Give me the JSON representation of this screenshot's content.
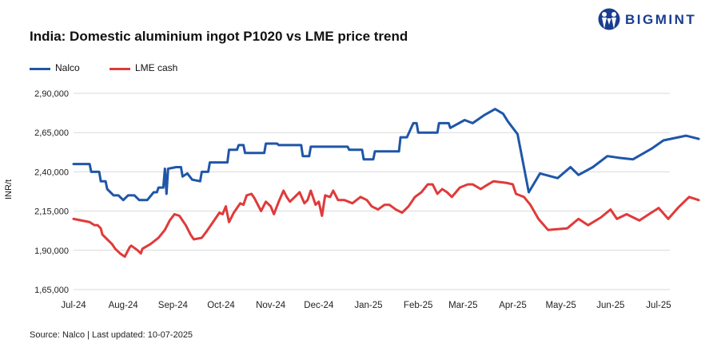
{
  "title": "India: Domestic aluminium ingot P1020 vs LME price trend",
  "logo": {
    "text": "BIGMINT",
    "icon": "bigmint-logo-icon",
    "color": "#1a3d8f"
  },
  "source": "Source: Nalco | Last updated: 10-07-2025",
  "legend": [
    {
      "name": "Nalco",
      "color": "#1f56a8"
    },
    {
      "name": "LME cash",
      "color": "#e03a3a"
    }
  ],
  "chart_data": {
    "type": "line",
    "title": "India: Domestic aluminium ingot P1020 vs LME price trend",
    "xlabel": "",
    "ylabel": "INR/t",
    "ylim": [
      165000,
      290000
    ],
    "y_ticks": [
      165000,
      190000,
      215000,
      240000,
      265000,
      290000
    ],
    "y_tick_labels": [
      "1,65,000",
      "1,90,000",
      "2,15,000",
      "2,40,000",
      "2,65,000",
      "2,90,000"
    ],
    "x_range": [
      "2024-07-01",
      "2025-07-08"
    ],
    "x_ticks": [
      "2024-07-01",
      "2024-08-01",
      "2024-09-01",
      "2024-10-01",
      "2024-11-01",
      "2024-12-01",
      "2025-01-01",
      "2025-02-01",
      "2025-03-01",
      "2025-04-01",
      "2025-05-01",
      "2025-06-01",
      "2025-07-01"
    ],
    "x_tick_labels": [
      "Jul-24",
      "Aug-24",
      "Sep-24",
      "Oct-24",
      "Nov-24",
      "Dec-24",
      "Jan-25",
      "Feb-25",
      "Mar-25",
      "Apr-25",
      "May-25",
      "Jun-25",
      "Jul-25"
    ],
    "grid": "horizontal",
    "legend_position": "top-left",
    "series": [
      {
        "name": "Nalco",
        "color": "#1f56a8",
        "points": [
          [
            "2024-07-01",
            245000
          ],
          [
            "2024-07-11",
            245000
          ],
          [
            "2024-07-12",
            240000
          ],
          [
            "2024-07-17",
            240000
          ],
          [
            "2024-07-18",
            234000
          ],
          [
            "2024-07-21",
            234000
          ],
          [
            "2024-07-22",
            229000
          ],
          [
            "2024-07-26",
            225000
          ],
          [
            "2024-07-29",
            225000
          ],
          [
            "2024-08-01",
            222000
          ],
          [
            "2024-08-04",
            225000
          ],
          [
            "2024-08-08",
            225000
          ],
          [
            "2024-08-11",
            222000
          ],
          [
            "2024-08-16",
            222000
          ],
          [
            "2024-08-20",
            227000
          ],
          [
            "2024-08-22",
            227000
          ],
          [
            "2024-08-23",
            230000
          ],
          [
            "2024-08-26",
            230000
          ],
          [
            "2024-08-27",
            242000
          ],
          [
            "2024-08-28",
            226000
          ],
          [
            "2024-08-29",
            242000
          ],
          [
            "2024-09-03",
            243000
          ],
          [
            "2024-09-06",
            243000
          ],
          [
            "2024-09-07",
            237000
          ],
          [
            "2024-09-10",
            239000
          ],
          [
            "2024-09-13",
            235000
          ],
          [
            "2024-09-18",
            234000
          ],
          [
            "2024-09-19",
            240000
          ],
          [
            "2024-09-23",
            240000
          ],
          [
            "2024-09-24",
            246000
          ],
          [
            "2024-10-05",
            246000
          ],
          [
            "2024-10-06",
            254000
          ],
          [
            "2024-10-11",
            254000
          ],
          [
            "2024-10-12",
            257000
          ],
          [
            "2024-10-15",
            257000
          ],
          [
            "2024-10-16",
            252000
          ],
          [
            "2024-10-28",
            252000
          ],
          [
            "2024-10-29",
            258000
          ],
          [
            "2024-11-05",
            258000
          ],
          [
            "2024-11-06",
            257000
          ],
          [
            "2024-11-20",
            257000
          ],
          [
            "2024-11-21",
            250000
          ],
          [
            "2024-11-25",
            250000
          ],
          [
            "2024-11-26",
            256000
          ],
          [
            "2024-12-19",
            256000
          ],
          [
            "2024-12-20",
            254000
          ],
          [
            "2024-12-28",
            254000
          ],
          [
            "2024-12-29",
            248000
          ],
          [
            "2025-01-04",
            248000
          ],
          [
            "2025-01-05",
            253000
          ],
          [
            "2025-01-20",
            253000
          ],
          [
            "2025-01-21",
            262000
          ],
          [
            "2025-01-25",
            262000
          ],
          [
            "2025-01-29",
            271000
          ],
          [
            "2025-01-31",
            271000
          ],
          [
            "2025-02-01",
            265000
          ],
          [
            "2025-02-13",
            265000
          ],
          [
            "2025-02-14",
            271000
          ],
          [
            "2025-02-20",
            271000
          ],
          [
            "2025-02-21",
            268000
          ],
          [
            "2025-03-02",
            273000
          ],
          [
            "2025-03-07",
            271000
          ],
          [
            "2025-03-14",
            276000
          ],
          [
            "2025-03-21",
            280000
          ],
          [
            "2025-03-26",
            277000
          ],
          [
            "2025-03-29",
            272000
          ],
          [
            "2025-04-04",
            264000
          ],
          [
            "2025-04-11",
            227000
          ],
          [
            "2025-04-18",
            239000
          ],
          [
            "2025-04-29",
            236000
          ],
          [
            "2025-05-07",
            243000
          ],
          [
            "2025-05-12",
            238000
          ],
          [
            "2025-05-21",
            243000
          ],
          [
            "2025-05-30",
            250000
          ],
          [
            "2025-06-06",
            249000
          ],
          [
            "2025-06-15",
            248000
          ],
          [
            "2025-06-27",
            255000
          ],
          [
            "2025-07-04",
            260000
          ],
          [
            "2025-07-18",
            263000
          ],
          [
            "2025-07-26",
            261000
          ]
        ]
      },
      {
        "name": "LME cash",
        "color": "#e03a3a",
        "points": [
          [
            "2024-07-01",
            210000
          ],
          [
            "2024-07-06",
            209000
          ],
          [
            "2024-07-11",
            208000
          ],
          [
            "2024-07-14",
            206000
          ],
          [
            "2024-07-16",
            206000
          ],
          [
            "2024-07-18",
            204000
          ],
          [
            "2024-07-19",
            200000
          ],
          [
            "2024-07-22",
            197000
          ],
          [
            "2024-07-24",
            195000
          ],
          [
            "2024-07-25",
            194000
          ],
          [
            "2024-07-27",
            191000
          ],
          [
            "2024-07-30",
            188000
          ],
          [
            "2024-08-02",
            186000
          ],
          [
            "2024-08-05",
            192000
          ],
          [
            "2024-08-06",
            193000
          ],
          [
            "2024-08-10",
            190000
          ],
          [
            "2024-08-12",
            188000
          ],
          [
            "2024-08-13",
            191000
          ],
          [
            "2024-08-18",
            194000
          ],
          [
            "2024-08-23",
            198000
          ],
          [
            "2024-08-27",
            203000
          ],
          [
            "2024-08-30",
            209000
          ],
          [
            "2024-09-02",
            213000
          ],
          [
            "2024-09-05",
            212000
          ],
          [
            "2024-09-09",
            206000
          ],
          [
            "2024-09-12",
            200000
          ],
          [
            "2024-09-14",
            197000
          ],
          [
            "2024-09-19",
            198000
          ],
          [
            "2024-09-22",
            202000
          ],
          [
            "2024-09-26",
            208000
          ],
          [
            "2024-09-30",
            214000
          ],
          [
            "2024-10-02",
            213000
          ],
          [
            "2024-10-04",
            218000
          ],
          [
            "2024-10-06",
            208000
          ],
          [
            "2024-10-09",
            214000
          ],
          [
            "2024-10-13",
            220000
          ],
          [
            "2024-10-15",
            219000
          ],
          [
            "2024-10-17",
            225000
          ],
          [
            "2024-10-20",
            226000
          ],
          [
            "2024-10-22",
            223000
          ],
          [
            "2024-10-24",
            219000
          ],
          [
            "2024-10-26",
            215000
          ],
          [
            "2024-10-29",
            221000
          ],
          [
            "2024-11-01",
            218000
          ],
          [
            "2024-11-03",
            213000
          ],
          [
            "2024-11-06",
            221000
          ],
          [
            "2024-11-09",
            228000
          ],
          [
            "2024-11-11",
            224000
          ],
          [
            "2024-11-13",
            221000
          ],
          [
            "2024-11-15",
            223000
          ],
          [
            "2024-11-19",
            227000
          ],
          [
            "2024-11-22",
            220000
          ],
          [
            "2024-11-24",
            222000
          ],
          [
            "2024-11-26",
            228000
          ],
          [
            "2024-11-29",
            219000
          ],
          [
            "2024-12-01",
            221000
          ],
          [
            "2024-12-03",
            212000
          ],
          [
            "2024-12-05",
            225000
          ],
          [
            "2024-12-08",
            224000
          ],
          [
            "2024-12-10",
            228000
          ],
          [
            "2024-12-13",
            222000
          ],
          [
            "2024-12-17",
            222000
          ],
          [
            "2024-12-22",
            220000
          ],
          [
            "2024-12-27",
            224000
          ],
          [
            "2024-12-31",
            222000
          ],
          [
            "2025-01-03",
            218000
          ],
          [
            "2025-01-07",
            216000
          ],
          [
            "2025-01-11",
            219000
          ],
          [
            "2025-01-14",
            219000
          ],
          [
            "2025-01-18",
            216000
          ],
          [
            "2025-01-22",
            214000
          ],
          [
            "2025-01-26",
            218000
          ],
          [
            "2025-01-30",
            224000
          ],
          [
            "2025-02-03",
            227000
          ],
          [
            "2025-02-07",
            232000
          ],
          [
            "2025-02-10",
            232000
          ],
          [
            "2025-02-13",
            226000
          ],
          [
            "2025-02-16",
            229000
          ],
          [
            "2025-02-19",
            227000
          ],
          [
            "2025-02-22",
            224000
          ],
          [
            "2025-02-27",
            230000
          ],
          [
            "2025-03-04",
            232000
          ],
          [
            "2025-03-07",
            232000
          ],
          [
            "2025-03-12",
            229000
          ],
          [
            "2025-03-15",
            231000
          ],
          [
            "2025-03-20",
            234000
          ],
          [
            "2025-03-28",
            233000
          ],
          [
            "2025-04-01",
            232000
          ],
          [
            "2025-04-03",
            226000
          ],
          [
            "2025-04-08",
            224000
          ],
          [
            "2025-04-12",
            219000
          ],
          [
            "2025-04-17",
            210000
          ],
          [
            "2025-04-23",
            203000
          ],
          [
            "2025-05-05",
            204000
          ],
          [
            "2025-05-12",
            210000
          ],
          [
            "2025-05-18",
            206000
          ],
          [
            "2025-05-26",
            211000
          ],
          [
            "2025-06-01",
            216000
          ],
          [
            "2025-06-05",
            210000
          ],
          [
            "2025-06-11",
            213000
          ],
          [
            "2025-06-19",
            209000
          ],
          [
            "2025-06-25",
            213000
          ],
          [
            "2025-07-01",
            217000
          ],
          [
            "2025-07-07",
            210000
          ],
          [
            "2025-07-13",
            217000
          ],
          [
            "2025-07-20",
            224000
          ],
          [
            "2025-07-26",
            222000
          ]
        ]
      }
    ]
  }
}
